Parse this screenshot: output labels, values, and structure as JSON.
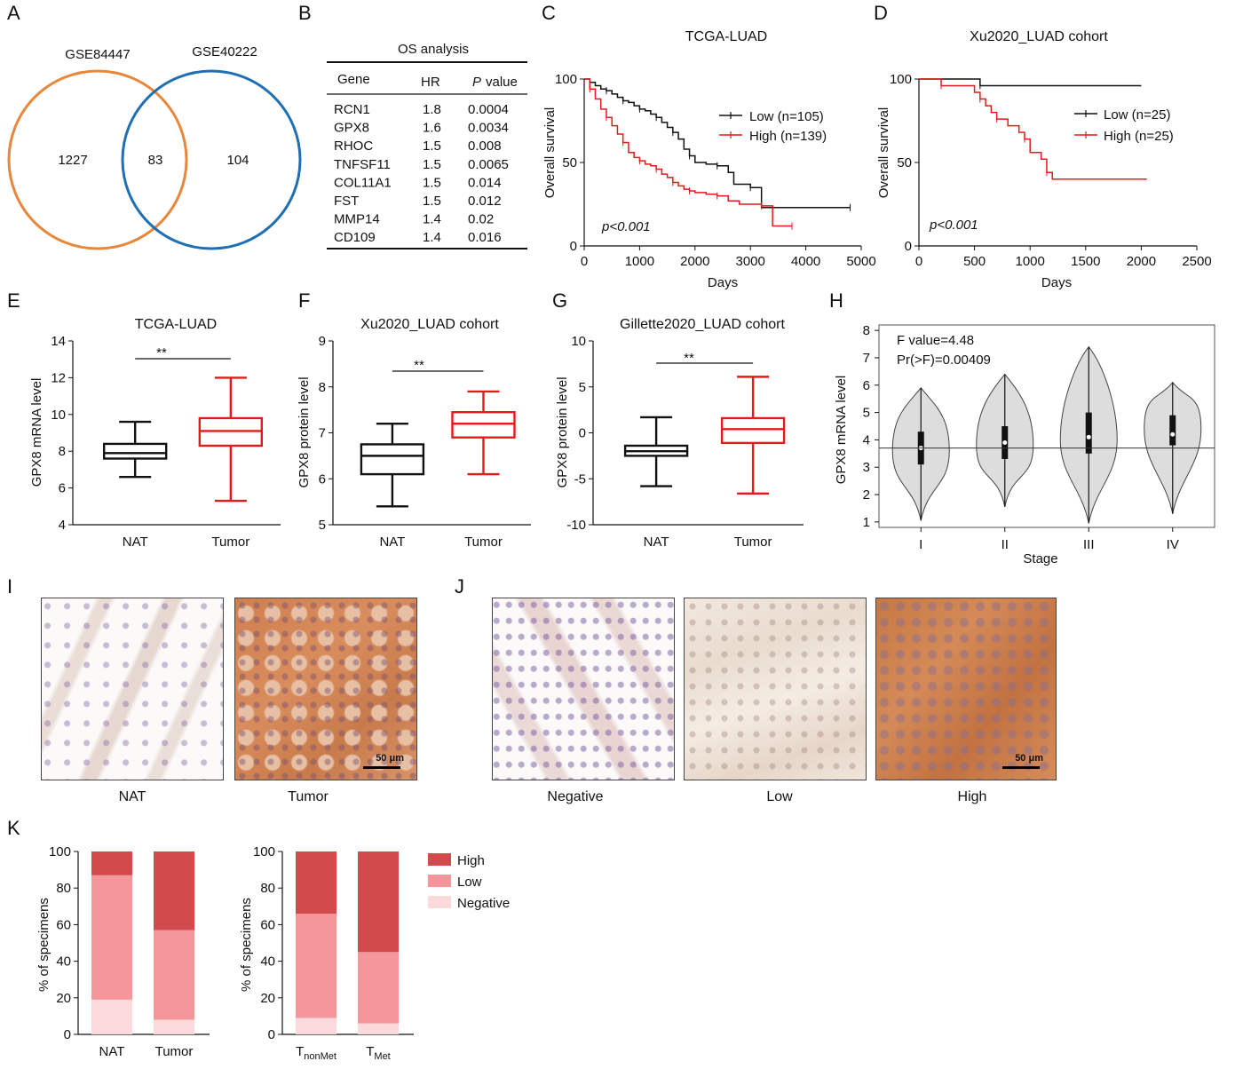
{
  "panel_labels": [
    "A",
    "B",
    "C",
    "D",
    "E",
    "F",
    "G",
    "H",
    "I",
    "J",
    "K"
  ],
  "venn": {
    "left_name": "GSE84447",
    "right_name": "GSE40222",
    "left_only": "1227",
    "overlap": "83",
    "right_only": "104",
    "left_color": "#E8863A",
    "right_color": "#1F6FB4"
  },
  "os_table": {
    "title": "OS analysis",
    "headers": [
      "Gene",
      "HR",
      "P value"
    ],
    "rows": [
      [
        "RCN1",
        "1.8",
        "0.0004"
      ],
      [
        "GPX8",
        "1.6",
        "0.0034"
      ],
      [
        "RHOC",
        "1.5",
        "0.008"
      ],
      [
        "TNFSF11",
        "1.5",
        "0.0065"
      ],
      [
        "COL11A1",
        "1.5",
        "0.014"
      ],
      [
        "FST",
        "1.5",
        "0.012"
      ],
      [
        "MMP14",
        "1.4",
        "0.02"
      ],
      [
        "CD109",
        "1.4",
        "0.016"
      ]
    ]
  },
  "km_c": {
    "title": "TCGA-LUAD",
    "xlabel": "Days",
    "ylabel": "Overall survival",
    "pval": "p<0.001",
    "low": "Low (n=105)",
    "high": "High (n=139)"
  },
  "km_d": {
    "title": "Xu2020_LUAD cohort",
    "xlabel": "Days",
    "ylabel": "Overall survival",
    "pval": "p<0.001",
    "low": "Low (n=25)",
    "high": "High (n=25)"
  },
  "box_e": {
    "title": "TCGA-LUAD",
    "ylabel": "GPX8 mRNA level",
    "sig": "**"
  },
  "box_f": {
    "title": "Xu2020_LUAD cohort",
    "ylabel": "GPX8 protein level",
    "sig": "**"
  },
  "box_g": {
    "title": "Gillette2020_LUAD cohort",
    "ylabel": "GPX8 protein level",
    "sig": "**"
  },
  "violin_h": {
    "ylabel": "GPX8 mRNA level",
    "xlabel": "Stage",
    "stat1": "F value=4.48",
    "stat2": "Pr(>F)=0.00409"
  },
  "ihc_i": {
    "captions": [
      "NAT",
      "Tumor"
    ],
    "scale": "50 μm"
  },
  "ihc_j": {
    "captions": [
      "Negative",
      "Low",
      "High"
    ],
    "scale": "50 μm"
  },
  "bar_k": {
    "ylabel": "% of specimens",
    "legend": [
      "High",
      "Low",
      "Negative"
    ],
    "right_sub_nonmet": "nonMet",
    "right_sub_met": "Met",
    "right_T": "T"
  },
  "colors": {
    "black": "#111111",
    "red": "#E41A1C",
    "high": "#D24A4C",
    "low": "#F5979A",
    "neg": "#FCDADB"
  },
  "chart_data": [
    {
      "panel": "C",
      "type": "line",
      "title": "TCGA-LUAD",
      "xlabel": "Days",
      "ylabel": "Overall survival",
      "xlim": [
        0,
        5000
      ],
      "ylim": [
        0,
        100
      ],
      "xticks": [
        0,
        1000,
        2000,
        3000,
        4000,
        5000
      ],
      "yticks": [
        0,
        50,
        100
      ],
      "series": [
        {
          "name": "Low (n=105)",
          "color": "#111111",
          "x": [
            0,
            100,
            200,
            300,
            400,
            500,
            600,
            700,
            800,
            900,
            1000,
            1100,
            1200,
            1300,
            1400,
            1500,
            1600,
            1700,
            1800,
            1900,
            2000,
            2200,
            2400,
            2600,
            2700,
            3000,
            3200,
            3800,
            4800
          ],
          "y": [
            100,
            98,
            96,
            94,
            93,
            91,
            89,
            87,
            86,
            84,
            82,
            81,
            79,
            77,
            74,
            71,
            68,
            64,
            58,
            54,
            50,
            49,
            48,
            44,
            37,
            35,
            23,
            23,
            23
          ]
        },
        {
          "name": "High (n=139)",
          "color": "#E41A1C",
          "x": [
            0,
            100,
            200,
            300,
            400,
            500,
            600,
            700,
            800,
            900,
            1000,
            1100,
            1200,
            1300,
            1400,
            1500,
            1600,
            1700,
            1800,
            1900,
            2000,
            2200,
            2400,
            2600,
            2800,
            3200,
            3300,
            3400,
            3750
          ],
          "y": [
            100,
            94,
            88,
            82,
            77,
            72,
            67,
            62,
            56,
            53,
            51,
            49,
            48,
            46,
            43,
            41,
            38,
            36,
            34,
            33,
            32,
            31,
            30,
            27,
            25,
            24,
            24,
            12,
            12
          ]
        }
      ]
    },
    {
      "panel": "D",
      "type": "line",
      "title": "Xu2020_LUAD cohort",
      "xlabel": "Days",
      "ylabel": "Overall survival",
      "xlim": [
        0,
        2500
      ],
      "ylim": [
        0,
        100
      ],
      "xticks": [
        0,
        500,
        1000,
        1500,
        2000,
        2500
      ],
      "yticks": [
        0,
        50,
        100
      ],
      "series": [
        {
          "name": "Low (n=25)",
          "color": "#111111",
          "x": [
            0,
            550,
            2000
          ],
          "y": [
            100,
            96,
            96
          ]
        },
        {
          "name": "High (n=25)",
          "color": "#E41A1C",
          "x": [
            0,
            200,
            300,
            500,
            550,
            600,
            650,
            700,
            800,
            900,
            950,
            1000,
            1100,
            1150,
            1200,
            2050
          ],
          "y": [
            100,
            96,
            96,
            92,
            88,
            84,
            80,
            76,
            72,
            68,
            64,
            56,
            52,
            44,
            40,
            40
          ]
        }
      ]
    },
    {
      "panel": "E",
      "type": "box",
      "title": "TCGA-LUAD",
      "ylabel": "GPX8 mRNA level",
      "ylim": [
        4,
        14
      ],
      "yticks": [
        4,
        6,
        8,
        10,
        12,
        14
      ],
      "categories": [
        "NAT",
        "Tumor"
      ],
      "boxes": [
        {
          "min": 6.6,
          "q1": 7.6,
          "median": 7.9,
          "q3": 8.4,
          "max": 9.6,
          "color": "#111111"
        },
        {
          "min": 5.3,
          "q1": 8.3,
          "median": 9.1,
          "q3": 9.8,
          "max": 12.0,
          "color": "#E41A1C"
        }
      ]
    },
    {
      "panel": "F",
      "type": "box",
      "title": "Xu2020_LUAD cohort",
      "ylabel": "GPX8 protein level",
      "ylim": [
        5,
        9
      ],
      "yticks": [
        5,
        6,
        7,
        8,
        9
      ],
      "categories": [
        "NAT",
        "Tumor"
      ],
      "boxes": [
        {
          "min": 5.4,
          "q1": 6.1,
          "median": 6.5,
          "q3": 6.75,
          "max": 7.2,
          "color": "#111111"
        },
        {
          "min": 6.1,
          "q1": 6.9,
          "median": 7.2,
          "q3": 7.45,
          "max": 7.9,
          "color": "#E41A1C"
        }
      ]
    },
    {
      "panel": "G",
      "type": "box",
      "title": "Gillette2020_LUAD cohort",
      "ylabel": "GPX8 protein level",
      "ylim": [
        -10,
        10
      ],
      "yticks": [
        -10,
        -5,
        0,
        5,
        10
      ],
      "categories": [
        "NAT",
        "Tumor"
      ],
      "boxes": [
        {
          "min": -5.8,
          "q1": -2.5,
          "median": -2.0,
          "q3": -1.4,
          "max": 1.7,
          "color": "#111111"
        },
        {
          "min": -6.6,
          "q1": -1.1,
          "median": 0.4,
          "q3": 1.6,
          "max": 6.1,
          "color": "#E41A1C"
        }
      ]
    },
    {
      "panel": "H",
      "type": "violin",
      "ylabel": "GPX8 mRNA level",
      "xlabel": "Stage",
      "ylim": [
        0.8,
        8.2
      ],
      "yticks": [
        1,
        2,
        3,
        4,
        5,
        6,
        7,
        8
      ],
      "categories": [
        "I",
        "II",
        "III",
        "IV"
      ],
      "reference_line": 3.7,
      "violins": [
        {
          "min": 1.05,
          "max": 5.9,
          "q1": 3.1,
          "median": 3.7,
          "q3": 4.3,
          "peak": 3.6
        },
        {
          "min": 1.55,
          "max": 6.4,
          "q1": 3.3,
          "median": 3.9,
          "q3": 4.5,
          "peak": 3.8
        },
        {
          "min": 0.95,
          "max": 7.4,
          "q1": 3.5,
          "median": 4.1,
          "q3": 5.0,
          "peak": 4.0
        },
        {
          "min": 1.3,
          "max": 6.1,
          "q1": 3.8,
          "median": 4.2,
          "q3": 4.9,
          "peak": 4.4
        }
      ]
    },
    {
      "panel": "K-left",
      "type": "bar",
      "ylabel": "% of specimens",
      "ylim": [
        0,
        100
      ],
      "yticks": [
        0,
        20,
        40,
        60,
        80,
        100
      ],
      "categories": [
        "NAT",
        "Tumor"
      ],
      "series": [
        {
          "name": "Negative",
          "values": [
            19,
            8
          ]
        },
        {
          "name": "Low",
          "values": [
            68,
            49
          ]
        },
        {
          "name": "High",
          "values": [
            13,
            43
          ]
        }
      ]
    },
    {
      "panel": "K-right",
      "type": "bar",
      "ylabel": "% of specimens",
      "ylim": [
        0,
        100
      ],
      "yticks": [
        0,
        20,
        40,
        60,
        80,
        100
      ],
      "categories": [
        "TnonMet",
        "TMet"
      ],
      "series": [
        {
          "name": "Negative",
          "values": [
            9,
            6
          ]
        },
        {
          "name": "Low",
          "values": [
            57,
            39
          ]
        },
        {
          "name": "High",
          "values": [
            34,
            55
          ]
        }
      ]
    }
  ]
}
